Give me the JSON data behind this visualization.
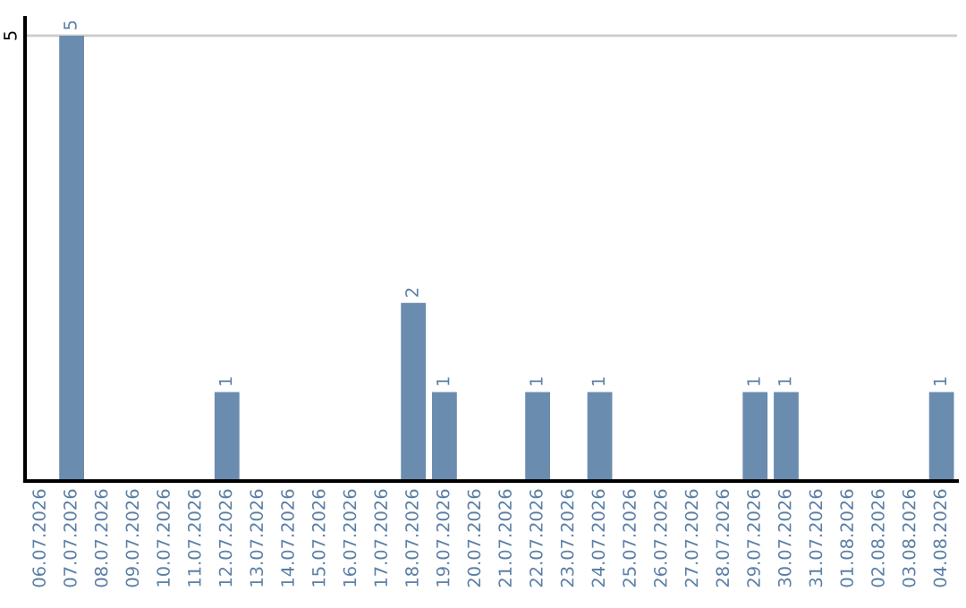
{
  "chart_data": {
    "type": "bar",
    "categories": [
      "06.07.2026",
      "07.07.2026",
      "08.07.2026",
      "09.07.2026",
      "10.07.2026",
      "11.07.2026",
      "12.07.2026",
      "13.07.2026",
      "14.07.2026",
      "15.07.2026",
      "16.07.2026",
      "17.07.2026",
      "18.07.2026",
      "19.07.2026",
      "20.07.2026",
      "21.07.2026",
      "22.07.2026",
      "23.07.2026",
      "24.07.2026",
      "25.07.2026",
      "26.07.2026",
      "27.07.2026",
      "28.07.2026",
      "29.07.2026",
      "30.07.2026",
      "31.07.2026",
      "01.08.2026",
      "02.08.2026",
      "03.08.2026",
      "04.08.2026"
    ],
    "values": [
      0,
      5,
      0,
      0,
      0,
      0,
      1,
      0,
      0,
      0,
      0,
      0,
      2,
      1,
      0,
      0,
      1,
      0,
      1,
      0,
      0,
      0,
      0,
      1,
      1,
      0,
      0,
      0,
      0,
      1
    ],
    "value_labels": [
      null,
      "5",
      null,
      null,
      null,
      null,
      "1",
      null,
      null,
      null,
      null,
      null,
      "2",
      "1",
      null,
      null,
      "1",
      null,
      "1",
      null,
      null,
      null,
      null,
      "1",
      "1",
      null,
      null,
      null,
      null,
      "1"
    ],
    "color": "#6a8caf",
    "ylim": [
      0,
      5.2
    ],
    "yticks": [
      5
    ],
    "grid": "y",
    "legend": false
  }
}
